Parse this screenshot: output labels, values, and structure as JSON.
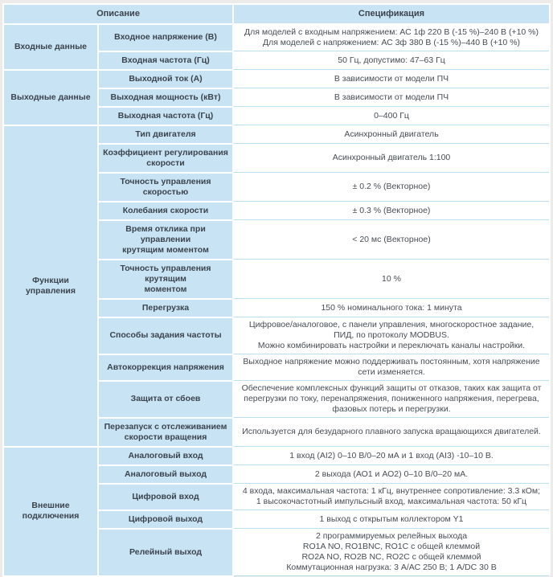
{
  "colors": {
    "cell_blue": "#c8e4f4",
    "divider_blue": "#bcdff0",
    "cell_white": "#ffffff",
    "label_text": "#3b434c",
    "value_text": "#454d54",
    "page_background": "#ecebe9"
  },
  "table": {
    "header": {
      "description": "Описание",
      "specification": "Спецификация"
    },
    "groups": [
      {
        "label_lines": [
          "Входные данные"
        ],
        "rows": [
          {
            "param_lines": [
              "Входное напряжение (В)"
            ],
            "spec_lines": [
              "Для моделей с входным напряжением: АС 1ф 220 В (-15 %)–240 В (+10 %)",
              "Для моделей с напряжением: АС 3ф 380 В (-15 %)–440 В (+10 %)"
            ]
          },
          {
            "param_lines": [
              "Входная частота (Гц)"
            ],
            "spec_lines": [
              "50 Гц, допустимо: 47–63 Гц"
            ]
          }
        ]
      },
      {
        "label_lines": [
          "Выходные данные"
        ],
        "rows": [
          {
            "param_lines": [
              "Выходной ток (А)"
            ],
            "spec_lines": [
              "В зависимости от модели ПЧ"
            ]
          },
          {
            "param_lines": [
              "Выходная мощность (кВт)"
            ],
            "spec_lines": [
              "В зависимости от модели ПЧ"
            ]
          },
          {
            "param_lines": [
              "Выходная частота (Гц)"
            ],
            "spec_lines": [
              "0–400 Гц"
            ]
          }
        ]
      },
      {
        "label_lines": [
          "Функции",
          "управления"
        ],
        "rows": [
          {
            "param_lines": [
              "Тип двигателя"
            ],
            "spec_lines": [
              "Асинхронный двигатель"
            ]
          },
          {
            "param_lines": [
              "Коэффициент регулирования",
              "скорости"
            ],
            "spec_lines": [
              "Асинхронный двигатель 1:100"
            ]
          },
          {
            "param_lines": [
              "Точность управления скоростью"
            ],
            "spec_lines": [
              "± 0.2 % (Векторное)"
            ]
          },
          {
            "param_lines": [
              "Колебания скорости"
            ],
            "spec_lines": [
              "± 0.3 % (Векторное)"
            ]
          },
          {
            "param_lines": [
              "Время отклика при управлении",
              "крутящим моментом"
            ],
            "spec_lines": [
              "< 20 мс (Векторное)"
            ]
          },
          {
            "param_lines": [
              "Точность управления крутящим",
              "моментом"
            ],
            "spec_lines": [
              "10 %"
            ]
          },
          {
            "param_lines": [
              "Перегрузка"
            ],
            "spec_lines": [
              "150 % номинального тока: 1 минута"
            ]
          },
          {
            "param_lines": [
              "Способы задания частоты"
            ],
            "spec_lines": [
              "Цифровое/аналоговое, с панели управления, многоскоростное задание,",
              "ПИД, по протоколу MODBUS.",
              "Можно комбинировать настройки и переключать каналы настройки."
            ]
          },
          {
            "param_lines": [
              "Автокоррекция напряжения"
            ],
            "spec_lines": [
              "Выходное напряжение можно поддерживать постоянным, хотя напряжение",
              "сети изменяется."
            ]
          },
          {
            "param_lines": [
              "Защита от сбоев"
            ],
            "spec_lines": [
              "Обеспечение комплексных функций защиты от отказов, таких как защита от",
              "перегрузки по току, перенапряжения, пониженного напряжения, перегрева,",
              "фазовых потерь и перегрузки."
            ]
          },
          {
            "param_lines": [
              "Перезапуск с отслеживанием",
              "скорости вращения"
            ],
            "spec_lines": [
              "Используется для безударного плавного запуска вращающихся двигателей."
            ]
          }
        ]
      },
      {
        "label_lines": [
          "Внешние",
          "подключения"
        ],
        "rows": [
          {
            "param_lines": [
              "Аналоговый вход"
            ],
            "spec_lines": [
              "1 вход (AI2) 0–10 В/0–20 мА и 1 вход (AI3) -10–10 В."
            ]
          },
          {
            "param_lines": [
              "Аналоговый выход"
            ],
            "spec_lines": [
              "2 выхода (АО1 и АО2) 0–10 В/0–20 мА."
            ]
          },
          {
            "param_lines": [
              "Цифровой вход"
            ],
            "spec_lines": [
              "4 входа, максимальная частота: 1 кГц, внутреннее сопротивление: 3.3 кОм;",
              "1 высокочастотный импульсный вход, максимальная частота: 50 кГц"
            ]
          },
          {
            "param_lines": [
              "Цифровой выход"
            ],
            "spec_lines": [
              "1 выход с открытым коллектором Y1"
            ]
          },
          {
            "param_lines": [
              "Релейный выход"
            ],
            "spec_lines": [
              "2 программируемых релейных выхода",
              "RO1A NO, RO1BNC, RO1C с общей клеммой",
              "RO2A NO, RO2B NC, RO2C с общей клеммой",
              "Коммутационная нагрузка: 3 А/АС 250 В; 1 А/DC 30 В"
            ]
          }
        ]
      }
    ]
  }
}
